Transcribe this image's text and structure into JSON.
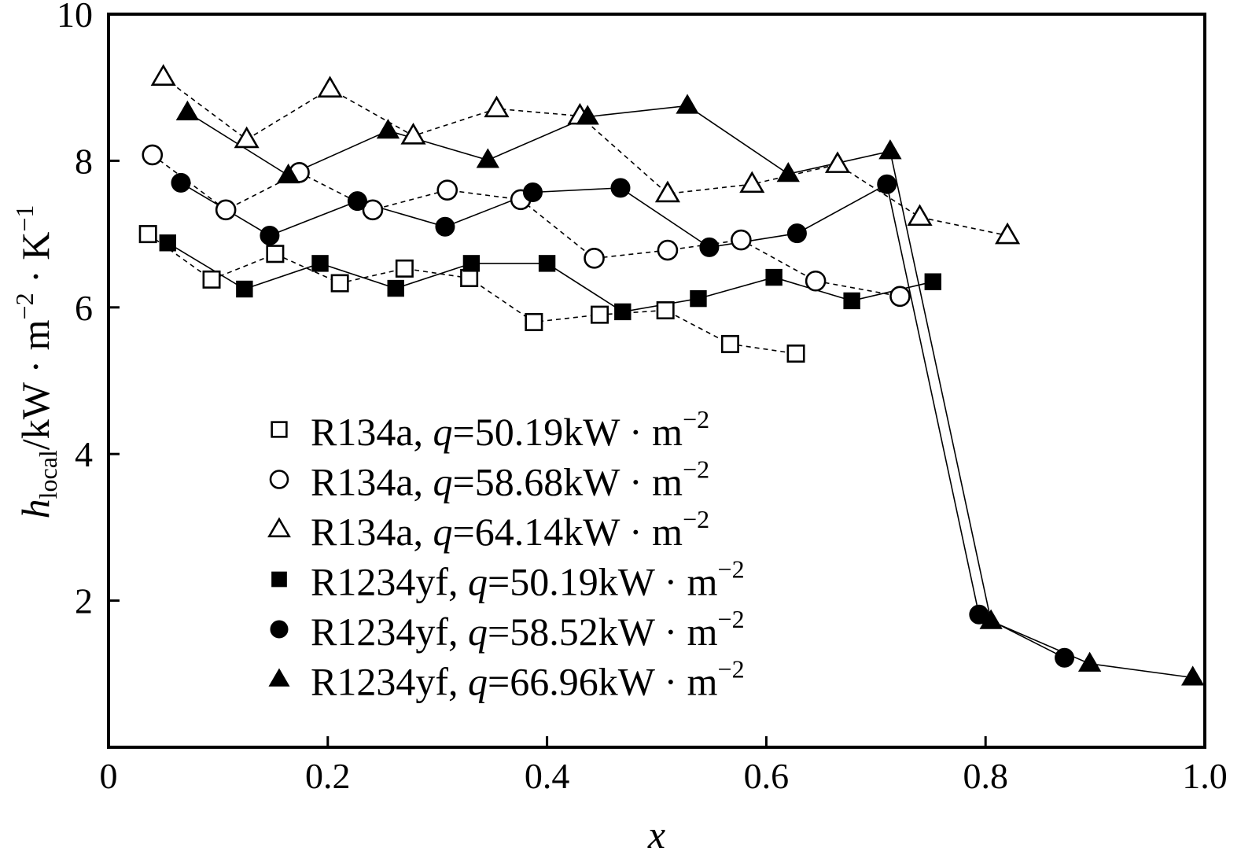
{
  "chart_data": {
    "type": "scatter",
    "title": "",
    "xlabel": "x",
    "ylabel": {
      "main": "h",
      "sub": "local",
      "rest": "/kW · m",
      "exp1": "−2",
      "mid": " · K",
      "exp2": "−1"
    },
    "xlim": [
      0,
      1.0
    ],
    "ylim": [
      0,
      10
    ],
    "x_ticks": [
      {
        "value": 0,
        "label": "0"
      },
      {
        "value": 0.2,
        "label": "0.2"
      },
      {
        "value": 0.4,
        "label": "0.4"
      },
      {
        "value": 0.6,
        "label": "0.6"
      },
      {
        "value": 0.8,
        "label": "0.8"
      },
      {
        "value": 1.0,
        "label": "1.0"
      }
    ],
    "y_ticks": [
      {
        "value": 2,
        "label": "2"
      },
      {
        "value": 4,
        "label": "4"
      },
      {
        "value": 6,
        "label": "6"
      },
      {
        "value": 8,
        "label": "8"
      },
      {
        "value": 10,
        "label": "10"
      }
    ],
    "grid": false,
    "legend_position": "lower-left",
    "series": [
      {
        "fluid": "R134a, ",
        "q": "q",
        "value": "=50.19kW · m",
        "exp": "−2",
        "marker": "square-open",
        "line": "dashed",
        "x": [
          0.036,
          0.094,
          0.152,
          0.211,
          0.27,
          0.329,
          0.388,
          0.448,
          0.508,
          0.567,
          0.627
        ],
        "y": [
          7.0,
          6.38,
          6.73,
          6.33,
          6.53,
          6.4,
          5.8,
          5.9,
          5.96,
          5.5,
          5.37
        ]
      },
      {
        "fluid": "R134a, ",
        "q": "q",
        "value": "=58.68kW · m",
        "exp": "−2",
        "marker": "circle-open",
        "line": "dashed",
        "x": [
          0.04,
          0.107,
          0.174,
          0.241,
          0.309,
          0.376,
          0.443,
          0.51,
          0.577,
          0.645,
          0.722
        ],
        "y": [
          8.08,
          7.33,
          7.84,
          7.33,
          7.6,
          7.47,
          6.67,
          6.78,
          6.92,
          6.36,
          6.15
        ]
      },
      {
        "fluid": "R134a, ",
        "q": "q",
        "value": "=64.14kW · m",
        "exp": "−2",
        "marker": "triangle-open",
        "line": "dashed",
        "x": [
          0.05,
          0.126,
          0.202,
          0.278,
          0.354,
          0.43,
          0.51,
          0.587,
          0.665,
          0.74,
          0.82
        ],
        "y": [
          9.14,
          8.29,
          8.98,
          8.34,
          8.71,
          8.61,
          7.55,
          7.68,
          7.95,
          7.23,
          6.98
        ]
      },
      {
        "fluid": "R1234yf, ",
        "q": "q",
        "value": "=50.19kW · m",
        "exp": "−2",
        "marker": "square-filled",
        "line": "solid",
        "x": [
          0.054,
          0.124,
          0.193,
          0.262,
          0.331,
          0.4,
          0.469,
          0.538,
          0.607,
          0.678,
          0.752
        ],
        "y": [
          6.88,
          6.25,
          6.6,
          6.26,
          6.6,
          6.6,
          5.94,
          6.12,
          6.41,
          6.09,
          6.35
        ]
      },
      {
        "fluid": "R1234yf, ",
        "q": "q",
        "value": "=58.52kW · m",
        "exp": "−2",
        "marker": "circle-filled",
        "line": "solid",
        "x": [
          0.066,
          0.147,
          0.227,
          0.307,
          0.387,
          0.467,
          0.548,
          0.628,
          0.71,
          0.794,
          0.872
        ],
        "y": [
          7.7,
          6.98,
          7.45,
          7.1,
          7.57,
          7.63,
          6.82,
          7.01,
          7.68,
          1.81,
          1.22
        ]
      },
      {
        "fluid": "R1234yf, ",
        "q": "q",
        "value": "=66.96kW · m",
        "exp": "−2",
        "marker": "triangle-filled",
        "line": "solid",
        "x": [
          0.072,
          0.164,
          0.255,
          0.346,
          0.437,
          0.528,
          0.62,
          0.713,
          0.805,
          0.895,
          0.989
        ],
        "y": [
          8.66,
          7.8,
          8.41,
          8.01,
          8.6,
          8.75,
          7.82,
          8.13,
          1.72,
          1.14,
          0.95
        ]
      }
    ]
  }
}
